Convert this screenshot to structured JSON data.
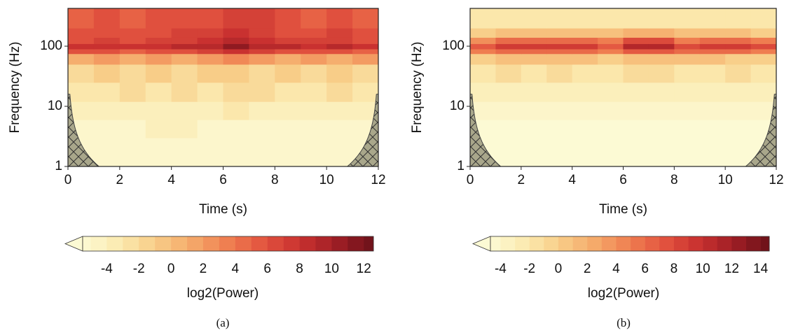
{
  "chart_data": [
    {
      "type": "heatmap",
      "caption": "(a)",
      "x_label": "Time (s)",
      "y_label": "Frequency (Hz)",
      "xlim": [
        0,
        12
      ],
      "xticks": [
        0,
        2,
        4,
        6,
        8,
        10,
        12
      ],
      "ylim": [
        1,
        425
      ],
      "yticks": [
        1,
        10,
        100
      ],
      "y_scale": "log",
      "x_bins": [
        0,
        1,
        2,
        3,
        4,
        5,
        6,
        7,
        8,
        9,
        10,
        11,
        12
      ],
      "y_bins": [
        1,
        3,
        6,
        12,
        25,
        50,
        75,
        90,
        110,
        140,
        200,
        425
      ],
      "values": [
        [
          -5,
          -5,
          -5,
          -5,
          -5,
          -5,
          -5,
          -5,
          -5,
          -5,
          -5,
          -5
        ],
        [
          -5,
          -5,
          -5,
          -4,
          -4,
          -5,
          -5,
          -5,
          -5,
          -5,
          -5,
          -5
        ],
        [
          -4,
          -4,
          -4,
          -4,
          -4,
          -4,
          -3,
          -4,
          -4,
          -4,
          -4,
          -4
        ],
        [
          -3,
          -3,
          -2,
          -3,
          -2,
          -3,
          -2,
          -2,
          -3,
          -3,
          -2,
          -3
        ],
        [
          -2,
          -1,
          -2,
          -1,
          -2,
          -1,
          -1,
          -2,
          -1,
          -2,
          -1,
          -2
        ],
        [
          1,
          2,
          1,
          2,
          1,
          2,
          3,
          2,
          1,
          2,
          1,
          2
        ],
        [
          6,
          6,
          5,
          6,
          6,
          7,
          8,
          7,
          6,
          6,
          6,
          5
        ],
        [
          8,
          8,
          8,
          8,
          9,
          9,
          11,
          9,
          9,
          8,
          9,
          8
        ],
        [
          6,
          7,
          6,
          7,
          7,
          8,
          9,
          8,
          7,
          7,
          7,
          6
        ],
        [
          6,
          6,
          6,
          6,
          7,
          7,
          8,
          7,
          6,
          6,
          7,
          6
        ],
        [
          5,
          6,
          5,
          6,
          6,
          6,
          7,
          7,
          6,
          5,
          6,
          5
        ]
      ],
      "colorbar": {
        "label": "log2(Power)",
        "lim": [
          -5.5,
          12.6
        ],
        "ticks": [
          -4,
          -2,
          0,
          2,
          4,
          6,
          8,
          10,
          12
        ]
      },
      "colormap": [
        "#fcfad4",
        "#fbeab0",
        "#f8cd88",
        "#f5a96a",
        "#ef7e50",
        "#e2533f",
        "#c8302f",
        "#9e1e25",
        "#6b1119"
      ]
    },
    {
      "type": "heatmap",
      "caption": "(b)",
      "x_label": "Time (s)",
      "y_label": "Frequency (Hz)",
      "xlim": [
        0,
        12
      ],
      "xticks": [
        0,
        2,
        4,
        6,
        8,
        10,
        12
      ],
      "ylim": [
        1,
        425
      ],
      "yticks": [
        1,
        10,
        100
      ],
      "y_scale": "log",
      "x_bins": [
        0,
        1,
        2,
        3,
        4,
        5,
        6,
        7,
        8,
        9,
        10,
        11,
        12
      ],
      "y_bins": [
        1,
        3,
        6,
        12,
        25,
        50,
        75,
        90,
        110,
        140,
        200,
        425
      ],
      "values": [
        [
          -5,
          -5,
          -5,
          -5,
          -5,
          -5,
          -5,
          -5,
          -5,
          -5,
          -5,
          -5
        ],
        [
          -5,
          -5,
          -5,
          -5,
          -5,
          -5,
          -5,
          -5,
          -5,
          -5,
          -5,
          -5
        ],
        [
          -4,
          -4,
          -4,
          -4,
          -4,
          -4,
          -4,
          -4,
          -4,
          -4,
          -4,
          -4
        ],
        [
          -3,
          -3,
          -3,
          -3,
          -3,
          -3,
          -3,
          -3,
          -3,
          -3,
          -3,
          -3
        ],
        [
          -2,
          -1,
          -2,
          -1,
          -2,
          -2,
          -1,
          -1,
          -2,
          -2,
          -1,
          -2
        ],
        [
          0,
          1,
          1,
          1,
          1,
          0,
          1,
          1,
          1,
          1,
          0,
          0
        ],
        [
          5,
          6,
          6,
          6,
          6,
          5,
          7,
          7,
          6,
          6,
          6,
          5
        ],
        [
          7,
          9,
          9,
          9,
          9,
          7,
          11,
          11,
          8,
          9,
          9,
          8
        ],
        [
          4,
          6,
          6,
          6,
          6,
          5,
          8,
          8,
          5,
          6,
          6,
          5
        ],
        [
          0,
          1,
          1,
          1,
          1,
          1,
          2,
          2,
          1,
          1,
          1,
          0
        ],
        [
          -2,
          -2,
          -2,
          -2,
          -2,
          -2,
          -2,
          -2,
          -2,
          -2,
          -2,
          -2
        ]
      ],
      "colorbar": {
        "label": "log2(Power)",
        "lim": [
          -4.7,
          14.6
        ],
        "ticks": [
          -4,
          -2,
          0,
          2,
          4,
          6,
          8,
          10,
          12,
          14
        ]
      },
      "colormap": [
        "#fcfad4",
        "#fbeab0",
        "#f8cd88",
        "#f5a96a",
        "#ef7e50",
        "#e2533f",
        "#c8302f",
        "#9e1e25",
        "#6b1119"
      ]
    }
  ]
}
